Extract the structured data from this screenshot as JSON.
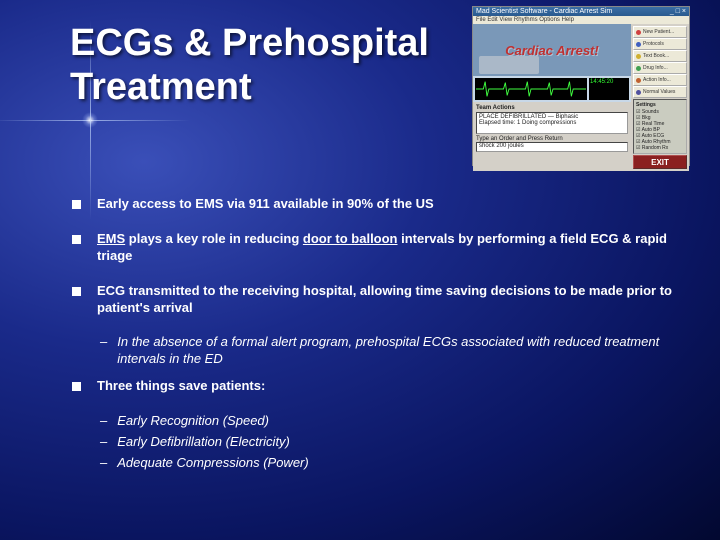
{
  "title_line1": "ECGs & Prehospital",
  "title_line2": "Treatment",
  "bullets": [
    {
      "text": "Early access to EMS via 911 available in 90% of the US"
    },
    {
      "html": "<span class='underline'>EMS</span> plays a key role in reducing <span class='underline'>door to balloon</span> intervals by performing a field ECG & rapid triage"
    },
    {
      "text": "ECG transmitted to the receiving hospital, allowing time saving decisions to be made prior to patient's arrival",
      "subs": [
        {
          "text": "In the absence of a formal alert program, prehospital ECGs associated with reduced treatment intervals in the ED",
          "italic": true
        }
      ]
    },
    {
      "text": "Three things save patients:",
      "subs": [
        {
          "text": "Early Recognition (Speed)",
          "italic": true
        },
        {
          "text": "Early Defibrillation (Electricity)",
          "italic": true
        },
        {
          "text": "Adequate Compressions (Power)",
          "italic": true
        }
      ]
    }
  ],
  "screenshot": {
    "window_title": "Mad Scientist Software - Cardiac Arrest Sim",
    "menu": "File  Edit  View  Rhythms  Options  Help",
    "banner": "Cardiac Arrest!",
    "readout_top": "14:45:20",
    "log_line1": "PLACE DEFIBRILLATED — Biphasic",
    "log_line2": "Elapsed time: 1   Doing compressions",
    "input_label": "Type an Order and Press Return",
    "input_value": "shock 200 joules",
    "side_buttons": [
      {
        "label": "New Patient...",
        "color": "#d04040"
      },
      {
        "label": "Protocols",
        "color": "#4060c0"
      },
      {
        "label": "Text Book...",
        "color": "#d0b030"
      },
      {
        "label": "Drug Info...",
        "color": "#40a050"
      },
      {
        "label": "Action Info...",
        "color": "#c06030"
      },
      {
        "label": "Normal Values",
        "color": "#5050a0"
      }
    ],
    "checks_title": "Settings",
    "checks": [
      "Sounds",
      "Bkg",
      "Real Time",
      "Auto BP",
      "Auto ECG",
      "Auto Rhythm",
      "Random Rx"
    ],
    "exit": "EXIT"
  }
}
